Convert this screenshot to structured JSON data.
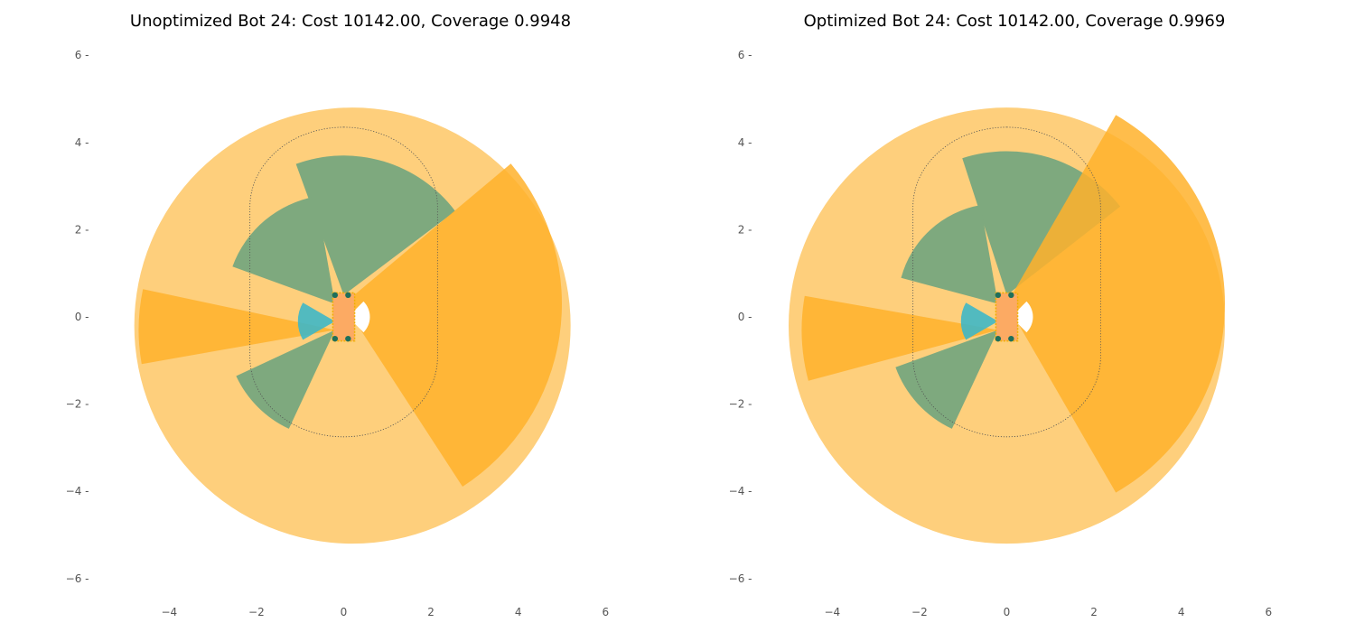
{
  "chart_data": [
    {
      "type": "diagram",
      "title": "Unoptimized Bot 24: Cost 10142.00, Coverage 0.9948",
      "xlim": [
        -5.6,
        6.4
      ],
      "ylim": [
        -6.3,
        6.4
      ],
      "x_ticks": [
        -4,
        -2,
        0,
        2,
        4,
        6
      ],
      "y_ticks": [
        -6,
        -4,
        -2,
        0,
        2,
        4,
        6
      ],
      "x_tick_labels": [
        "−4",
        "−2",
        "0",
        "2",
        "4",
        "6"
      ],
      "y_tick_labels": [
        "−6 -",
        "−4 -",
        "−2 -",
        "0 -",
        "2 -",
        "4 -",
        "6 -"
      ],
      "grid": false,
      "coverage_circle": {
        "center": [
          0.2,
          -0.2
        ],
        "radius": 5.0,
        "color": "#FECF7C"
      },
      "outline": {
        "center": [
          0.0,
          0.8
        ],
        "half_width": 2.15,
        "half_height": 3.55,
        "color": "#555555"
      },
      "body": {
        "x": -0.25,
        "y": -0.55,
        "width": 0.5,
        "height": 1.1,
        "fill": "#FCAA63",
        "edge": "#F0B000"
      },
      "sensors": [
        {
          "origin": [
            0.0,
            0.5
          ],
          "radius": 3.2,
          "angles": [
            37,
            110
          ],
          "color": "#7EA97E",
          "opacity": 1.0
        },
        {
          "origin": [
            -0.2,
            0.3
          ],
          "radius": 2.5,
          "angles": [
            100,
            160
          ],
          "color": "#7EA97E",
          "opacity": 1.0
        },
        {
          "origin": [
            -0.2,
            -0.3
          ],
          "radius": 2.5,
          "angles": [
            205,
            245
          ],
          "color": "#7EA97E",
          "opacity": 1.0
        },
        {
          "origin": [
            0.0,
            0.3
          ],
          "radius": 5.0,
          "angles": [
            -57,
            40
          ],
          "color": "#FFB22C",
          "opacity": 0.85
        },
        {
          "origin": [
            -0.2,
            -0.3
          ],
          "radius": 4.5,
          "angles": [
            168,
            190
          ],
          "color": "#FFB22C",
          "opacity": 0.85
        },
        {
          "origin": [
            -0.2,
            -0.1
          ],
          "radius": 0.85,
          "angles": [
            150,
            210
          ],
          "color": "#3FB7C6",
          "opacity": 0.9
        }
      ],
      "white_wedge": {
        "origin": [
          0.1,
          0.0
        ],
        "radius": 0.5,
        "angles": [
          -45,
          45
        ]
      },
      "markers": [
        [
          -0.2,
          0.5
        ],
        [
          0.1,
          0.5
        ],
        [
          -0.2,
          -0.5
        ],
        [
          0.1,
          -0.5
        ]
      ]
    },
    {
      "type": "diagram",
      "title": "Optimized Bot 24: Cost 10142.00, Coverage 0.9969",
      "xlim": [
        -5.6,
        6.4
      ],
      "ylim": [
        -6.3,
        6.4
      ],
      "x_ticks": [
        -4,
        -2,
        0,
        2,
        4,
        6
      ],
      "y_ticks": [
        -6,
        -4,
        -2,
        0,
        2,
        4,
        6
      ],
      "x_tick_labels": [
        "−4",
        "−2",
        "0",
        "2",
        "4",
        "6"
      ],
      "y_tick_labels": [
        "−6 -",
        "−4 -",
        "−2 -",
        "0 -",
        "2 -",
        "4 -",
        "6 -"
      ],
      "grid": false,
      "coverage_circle": {
        "center": [
          0.0,
          -0.2
        ],
        "radius": 5.0,
        "color": "#FECF7C"
      },
      "outline": {
        "center": [
          0.0,
          0.8
        ],
        "half_width": 2.15,
        "half_height": 3.55,
        "color": "#555555"
      },
      "body": {
        "x": -0.25,
        "y": -0.55,
        "width": 0.5,
        "height": 1.1,
        "fill": "#FCAA63",
        "edge": "#F0B000"
      },
      "sensors": [
        {
          "origin": [
            0.0,
            0.5
          ],
          "radius": 3.3,
          "angles": [
            38,
            108
          ],
          "color": "#7EA97E",
          "opacity": 1.0
        },
        {
          "origin": [
            -0.2,
            0.3
          ],
          "radius": 2.3,
          "angles": [
            100,
            165
          ],
          "color": "#7EA97E",
          "opacity": 1.0
        },
        {
          "origin": [
            -0.2,
            -0.3
          ],
          "radius": 2.5,
          "angles": [
            200,
            245
          ],
          "color": "#7EA97E",
          "opacity": 1.0
        },
        {
          "origin": [
            0.0,
            0.3
          ],
          "radius": 5.0,
          "angles": [
            -60,
            60
          ],
          "color": "#FFB22C",
          "opacity": 0.85
        },
        {
          "origin": [
            -0.2,
            -0.3
          ],
          "radius": 4.5,
          "angles": [
            170,
            195
          ],
          "color": "#FFB22C",
          "opacity": 0.85
        },
        {
          "origin": [
            -0.2,
            -0.1
          ],
          "radius": 0.85,
          "angles": [
            150,
            210
          ],
          "color": "#3FB7C6",
          "opacity": 0.9
        }
      ],
      "white_wedge": {
        "origin": [
          0.1,
          0.0
        ],
        "radius": 0.5,
        "angles": [
          -45,
          45
        ]
      },
      "markers": [
        [
          -0.2,
          0.5
        ],
        [
          0.1,
          0.5
        ],
        [
          -0.2,
          -0.5
        ],
        [
          0.1,
          -0.5
        ]
      ]
    }
  ]
}
